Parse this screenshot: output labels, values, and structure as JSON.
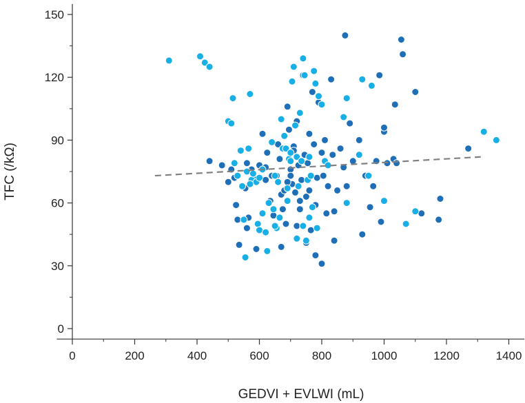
{
  "chart_data": {
    "type": "scatter",
    "title": "",
    "xlabel": "GEDVI + EVLWI (mL)",
    "ylabel": "TFC (/kΩ)",
    "xlim": [
      -50,
      1450
    ],
    "ylim": [
      -5,
      155
    ],
    "x_ticks": [
      0,
      200,
      400,
      600,
      800,
      1000,
      1200,
      1400
    ],
    "y_ticks": [
      0,
      30,
      60,
      90,
      120,
      150
    ],
    "grid": false,
    "legend": "none",
    "colors": {
      "series_a": "#1e6fb8",
      "series_b": "#18aee6",
      "trend": "#808080"
    },
    "trendline": {
      "x": [
        265,
        1310
      ],
      "y": [
        73,
        82
      ]
    },
    "series": [
      {
        "color_key": "series_a",
        "points": [
          [
            440,
            80
          ],
          [
            480,
            78
          ],
          [
            500,
            70
          ],
          [
            510,
            76
          ],
          [
            520,
            72
          ],
          [
            525,
            59
          ],
          [
            530,
            52
          ],
          [
            535,
            40
          ],
          [
            545,
            68
          ],
          [
            555,
            67
          ],
          [
            560,
            79
          ],
          [
            565,
            53
          ],
          [
            575,
            76
          ],
          [
            590,
            38
          ],
          [
            600,
            78
          ],
          [
            610,
            93
          ],
          [
            620,
            71
          ],
          [
            625,
            84
          ],
          [
            635,
            61
          ],
          [
            640,
            89
          ],
          [
            645,
            54
          ],
          [
            655,
            73
          ],
          [
            660,
            88
          ],
          [
            665,
            81
          ],
          [
            670,
            64
          ],
          [
            675,
            57
          ],
          [
            680,
            66
          ],
          [
            685,
            50
          ],
          [
            690,
            106
          ],
          [
            695,
            95
          ],
          [
            700,
            76
          ],
          [
            705,
            69
          ],
          [
            710,
            87
          ],
          [
            715,
            65
          ],
          [
            720,
            99
          ],
          [
            725,
            78
          ],
          [
            730,
            61
          ],
          [
            735,
            71
          ],
          [
            740,
            121
          ],
          [
            745,
            83
          ],
          [
            750,
            63
          ],
          [
            755,
            79
          ],
          [
            760,
            93
          ],
          [
            765,
            47
          ],
          [
            770,
            113
          ],
          [
            775,
            88
          ],
          [
            780,
            35
          ],
          [
            785,
            72
          ],
          [
            790,
            108
          ],
          [
            800,
            31
          ],
          [
            805,
            73
          ],
          [
            810,
            90
          ],
          [
            815,
            55
          ],
          [
            820,
            68
          ],
          [
            830,
            119
          ],
          [
            835,
            83
          ],
          [
            840,
            42
          ],
          [
            850,
            66
          ],
          [
            860,
            86
          ],
          [
            870,
            77
          ],
          [
            875,
            140
          ],
          [
            880,
            68
          ],
          [
            890,
            98
          ],
          [
            900,
            80
          ],
          [
            920,
            90
          ],
          [
            930,
            45
          ],
          [
            940,
            73
          ],
          [
            955,
            58
          ],
          [
            965,
            68
          ],
          [
            975,
            80
          ],
          [
            985,
            121
          ],
          [
            990,
            51
          ],
          [
            1000,
            94
          ],
          [
            1000,
            96
          ],
          [
            1010,
            79
          ],
          [
            1030,
            81
          ],
          [
            1035,
            107
          ],
          [
            1040,
            79
          ],
          [
            1055,
            138
          ],
          [
            1060,
            131
          ],
          [
            1100,
            113
          ],
          [
            1120,
            55
          ],
          [
            1175,
            52
          ],
          [
            1180,
            62
          ],
          [
            1270,
            86
          ],
          [
            700,
            73
          ],
          [
            730,
            57
          ],
          [
            760,
            66
          ],
          [
            640,
            73
          ],
          [
            580,
            72
          ],
          [
            710,
            85
          ],
          [
            800,
            84
          ],
          [
            690,
            70
          ],
          [
            750,
            41
          ],
          [
            670,
            39
          ],
          [
            620,
            77
          ],
          [
            840,
            56
          ],
          [
            560,
            48
          ],
          [
            780,
            59
          ],
          [
            720,
            49
          ]
        ]
      },
      {
        "color_key": "series_b",
        "points": [
          [
            310,
            128
          ],
          [
            410,
            130
          ],
          [
            425,
            127
          ],
          [
            440,
            125
          ],
          [
            500,
            99
          ],
          [
            510,
            98
          ],
          [
            515,
            110
          ],
          [
            520,
            79
          ],
          [
            530,
            73
          ],
          [
            540,
            85
          ],
          [
            545,
            68
          ],
          [
            550,
            52
          ],
          [
            555,
            34
          ],
          [
            560,
            75
          ],
          [
            565,
            86
          ],
          [
            570,
            112
          ],
          [
            575,
            71
          ],
          [
            580,
            74
          ],
          [
            590,
            70
          ],
          [
            595,
            50
          ],
          [
            600,
            47
          ],
          [
            610,
            55
          ],
          [
            620,
            46
          ],
          [
            625,
            37
          ],
          [
            630,
            60
          ],
          [
            640,
            89
          ],
          [
            645,
            57
          ],
          [
            650,
            73
          ],
          [
            655,
            48
          ],
          [
            665,
            53
          ],
          [
            670,
            100
          ],
          [
            675,
            86
          ],
          [
            680,
            92
          ],
          [
            685,
            86
          ],
          [
            690,
            67
          ],
          [
            695,
            81
          ],
          [
            700,
            84
          ],
          [
            705,
            118
          ],
          [
            710,
            125
          ],
          [
            715,
            97
          ],
          [
            720,
            82
          ],
          [
            725,
            68
          ],
          [
            730,
            103
          ],
          [
            735,
            80
          ],
          [
            740,
            129
          ],
          [
            745,
            121
          ],
          [
            750,
            42
          ],
          [
            755,
            71
          ],
          [
            760,
            82
          ],
          [
            765,
            73
          ],
          [
            770,
            58
          ],
          [
            775,
            123
          ],
          [
            780,
            117
          ],
          [
            785,
            48
          ],
          [
            790,
            111
          ],
          [
            800,
            107
          ],
          [
            810,
            80
          ],
          [
            820,
            78
          ],
          [
            870,
            101
          ],
          [
            880,
            110
          ],
          [
            920,
            83
          ],
          [
            930,
            119
          ],
          [
            950,
            73
          ],
          [
            960,
            116
          ],
          [
            1000,
            61
          ],
          [
            1070,
            50
          ],
          [
            1100,
            56
          ],
          [
            1320,
            94
          ],
          [
            1360,
            90
          ],
          [
            660,
            70
          ],
          [
            600,
            72
          ],
          [
            700,
            80
          ],
          [
            740,
            49
          ],
          [
            690,
            61
          ],
          [
            650,
            49
          ],
          [
            570,
            69
          ],
          [
            880,
            60
          ],
          [
            720,
            43
          ],
          [
            760,
            53
          ],
          [
            610,
            76
          ]
        ]
      }
    ]
  }
}
